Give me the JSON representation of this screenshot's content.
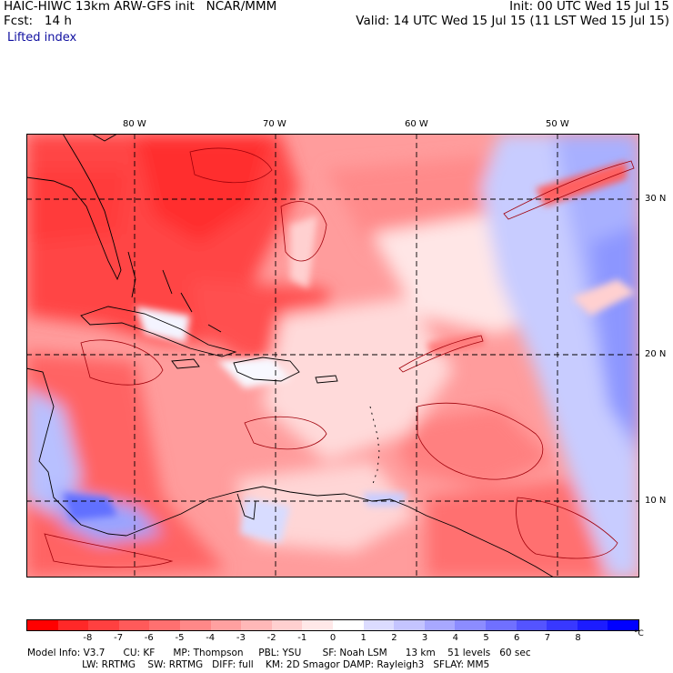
{
  "header": {
    "model_line": "HAIC-HIWC 13km ARW-GFS init   NCAR/MMM",
    "fcst_line": "Fcst:   14 h",
    "init_line": "Init: 00 UTC Wed 15 Jul 15",
    "valid_line": "Valid: 14 UTC Wed 15 Jul 15 (11 LST Wed 15 Jul 15)",
    "field_name": "Lifted index"
  },
  "map": {
    "lon_labels": [
      "80 W",
      "70 W",
      "60 W",
      "50 W"
    ],
    "lat_labels": [
      "30 N",
      "20 N",
      "10 N"
    ],
    "field_colors": {
      "deep_red": "#ff3030",
      "red": "#ff5555",
      "light_red": "#ff8c8c",
      "pink": "#ffc8c8",
      "white": "#ffffff",
      "light_blue": "#c6d0ff",
      "blue": "#8090ff",
      "deep_blue": "#1010ff"
    }
  },
  "colorbar": {
    "colors": [
      "#ff0000",
      "#ff2828",
      "#ff4040",
      "#ff5a5a",
      "#ff7070",
      "#ff8888",
      "#ffa0a0",
      "#ffb8b8",
      "#ffd0d0",
      "#ffe8e8",
      "#ffffff",
      "#dcdcff",
      "#c4c4ff",
      "#a8a8ff",
      "#8c8cff",
      "#7070ff",
      "#5454ff",
      "#3838ff",
      "#1c1cff",
      "#0000ff"
    ],
    "labels": [
      "-8",
      "-7",
      "-6",
      "-5",
      "-4",
      "-3",
      "-2",
      "-1",
      "0",
      "1",
      "2",
      "3",
      "4",
      "5",
      "6",
      "7",
      "8"
    ],
    "unit": "°C"
  },
  "footer": {
    "line1": "Model Info: V3.7      CU: KF      MP: Thompson     PBL: YSU       SF: Noah LSM      13 km    51 levels   60 sec",
    "line2": "                  LW: RRTMG    SW: RRTMG   DIFF: full    KM: 2D Smagor DAMP: Rayleigh3   SFLAY: MM5"
  }
}
